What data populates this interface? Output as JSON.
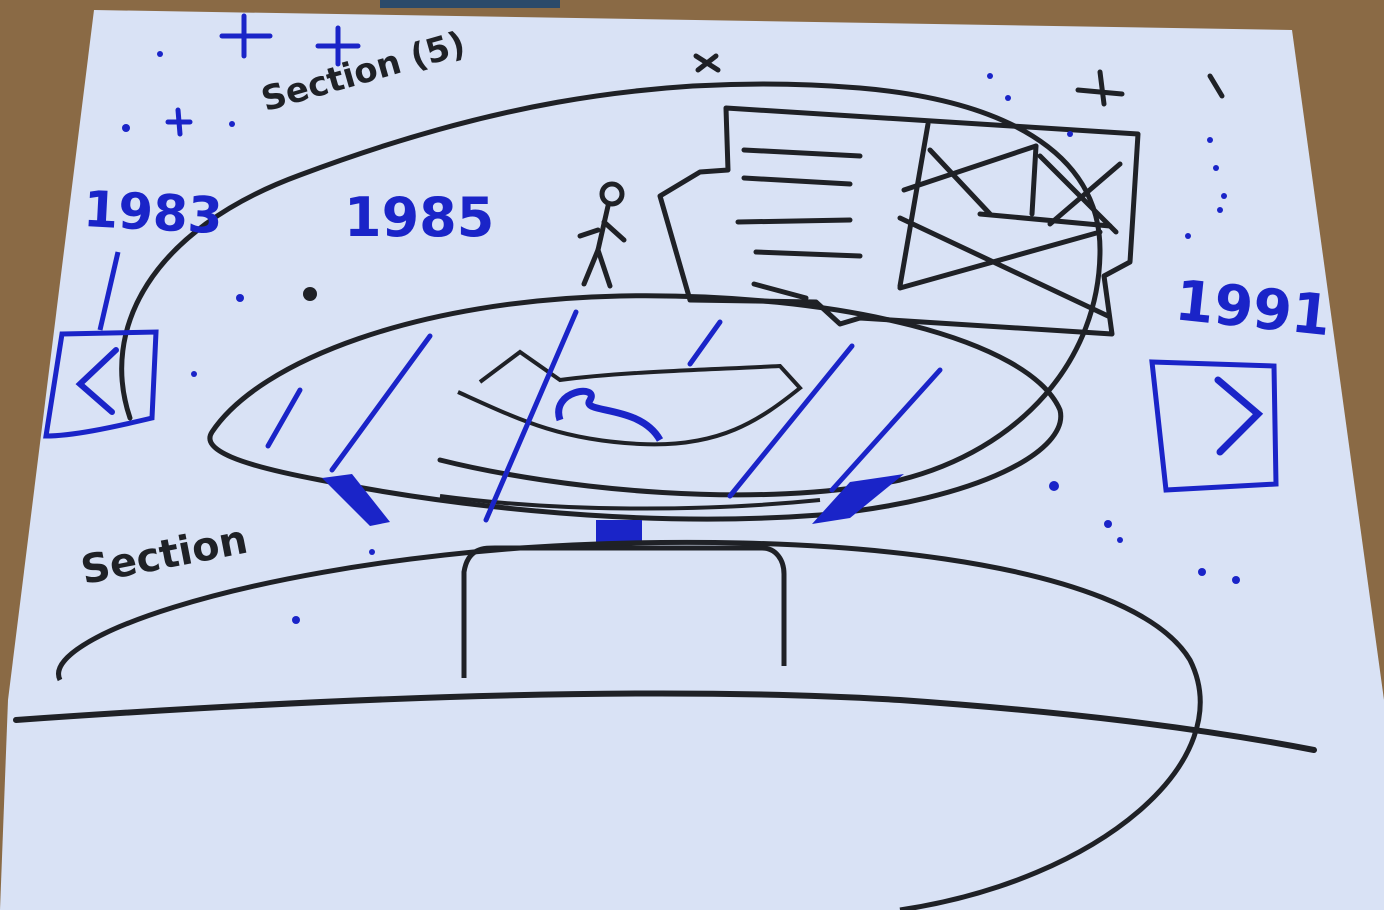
{
  "sketch": {
    "labels": {
      "section_top": "Section (5)",
      "section_bottom": "Section"
    },
    "timeline": {
      "years": [
        "1983",
        "1985",
        "1991"
      ]
    },
    "nav_buttons": {
      "prev": "<",
      "next": ">"
    }
  },
  "colors": {
    "paper": "#d9e2f5",
    "ink_black": "#1f2126",
    "ink_blue": "#1a24c8",
    "table_wood": "#8a6a45"
  }
}
